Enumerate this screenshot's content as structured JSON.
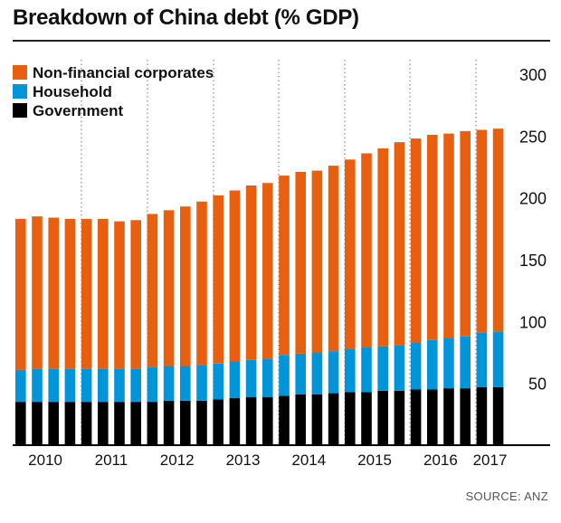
{
  "title": "Breakdown of China debt (% GDP)",
  "source": "SOURCE: ANZ",
  "chart_data": {
    "type": "bar",
    "stacked": true,
    "title": "Breakdown of China debt (% GDP)",
    "xlabel": "",
    "ylabel": "",
    "ylim": [
      0,
      300
    ],
    "yticks": [
      50,
      100,
      150,
      200,
      250,
      300
    ],
    "x_tick_labels": [
      "2010",
      "2011",
      "2012",
      "2013",
      "2014",
      "2015",
      "2016",
      "2017"
    ],
    "legend_position": "top-left",
    "grid": "dotted vertical year separators",
    "categories": [
      "2010 Q1",
      "2010 Q2",
      "2010 Q3",
      "2010 Q4",
      "2011 Q1",
      "2011 Q2",
      "2011 Q3",
      "2011 Q4",
      "2012 Q1",
      "2012 Q2",
      "2012 Q3",
      "2012 Q4",
      "2013 Q1",
      "2013 Q2",
      "2013 Q3",
      "2013 Q4",
      "2014 Q1",
      "2014 Q2",
      "2014 Q3",
      "2014 Q4",
      "2015 Q1",
      "2015 Q2",
      "2015 Q3",
      "2015 Q4",
      "2016 Q1",
      "2016 Q2",
      "2016 Q3",
      "2016 Q4",
      "2017 Q1",
      "2017 Q2"
    ],
    "series": [
      {
        "name": "Government",
        "color": "#000000",
        "values": [
          35,
          35,
          35,
          35,
          35,
          35,
          35,
          35,
          35,
          36,
          36,
          36,
          37,
          38,
          39,
          39,
          40,
          41,
          41,
          42,
          43,
          43,
          44,
          44,
          45,
          45,
          46,
          46,
          47,
          47
        ]
      },
      {
        "name": "Household",
        "color": "#0095d9",
        "values": [
          26,
          27,
          27,
          27,
          27,
          27,
          27,
          27,
          28,
          28,
          28,
          29,
          29,
          30,
          30,
          31,
          33,
          33,
          34,
          34,
          35,
          36,
          36,
          37,
          38,
          40,
          41,
          42,
          44,
          45
        ]
      },
      {
        "name": "Non-financial corporates",
        "color": "#e8600f",
        "values": [
          122,
          123,
          122,
          121,
          121,
          121,
          119,
          120,
          124,
          126,
          129,
          132,
          136,
          138,
          141,
          142,
          145,
          147,
          147,
          150,
          153,
          157,
          160,
          164,
          165,
          166,
          165,
          166,
          164,
          164
        ]
      }
    ]
  }
}
